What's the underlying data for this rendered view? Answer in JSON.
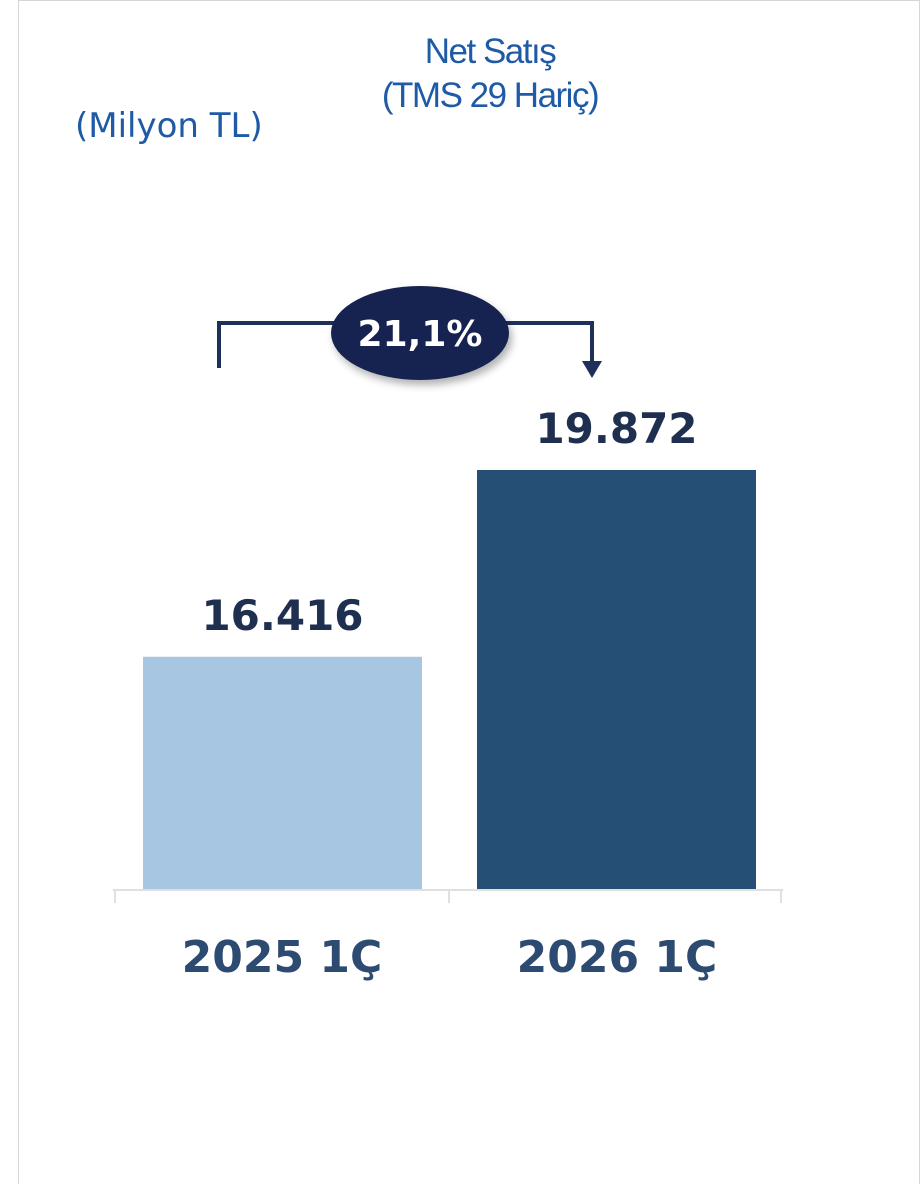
{
  "chart_data": {
    "type": "bar",
    "title_lines": [
      "Net Satış",
      "(TMS 29 Hariç)"
    ],
    "unit_label": "(Milyon TL)",
    "categories": [
      "2025 1Ç",
      "2026 1Ç"
    ],
    "values": [
      16416,
      19872
    ],
    "value_labels": [
      "16.416",
      "19.872"
    ],
    "bar_colors": [
      "#a6c6e2",
      "#264f75"
    ],
    "ylim": [
      12100,
      20700
    ],
    "growth_label": "21,1%",
    "grid": false,
    "legend": "none"
  },
  "colors": {
    "accent_text": "#1f5aa6",
    "value_text": "#1e2f4f",
    "badge_fill": "#13244f",
    "arrow": "#1e2f5a"
  }
}
